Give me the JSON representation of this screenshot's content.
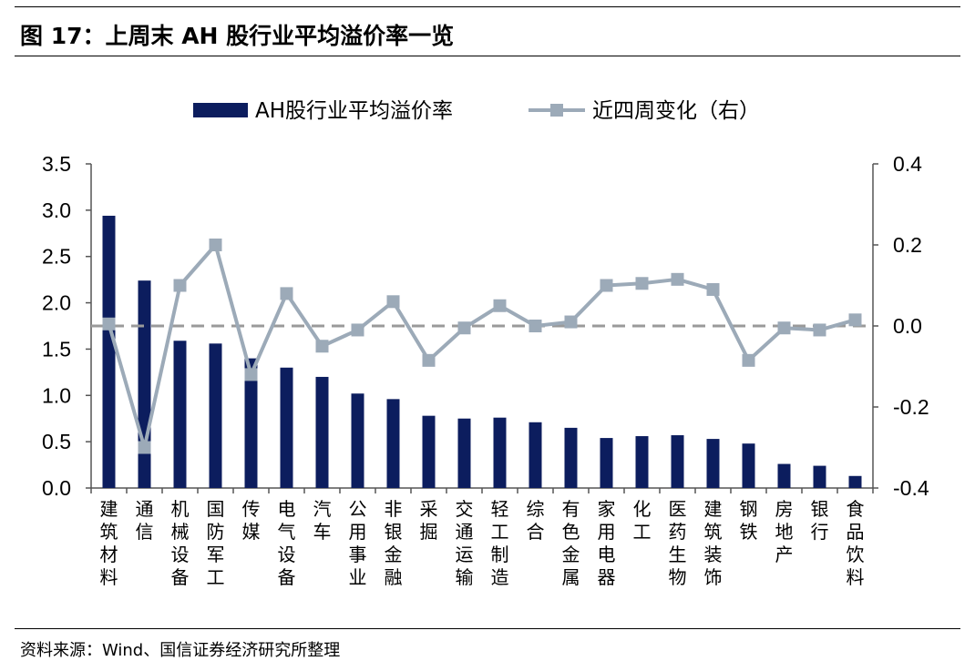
{
  "header": {
    "title": "图 17：上周末 AH 股行业平均溢价率一览"
  },
  "footer": {
    "source": "资料来源：Wind、国信证券经济研究所整理"
  },
  "chart_data": {
    "type": "bar+line",
    "categories": [
      "建筑材料",
      "通信",
      "机械设备",
      "国防军工",
      "传媒",
      "电气设备",
      "汽车",
      "公用事业",
      "非银金融",
      "采掘",
      "交通运输",
      "轻工制造",
      "综合",
      "有色金属",
      "家用电器",
      "化工",
      "医药生物",
      "建筑装饰",
      "钢铁",
      "房地产",
      "银行",
      "食品饮料"
    ],
    "series": [
      {
        "name": "AH股行业平均溢价率",
        "type": "bar",
        "axis": "left",
        "color": "#0c1d5e",
        "values": [
          2.94,
          2.24,
          1.59,
          1.56,
          1.4,
          1.3,
          1.2,
          1.02,
          0.96,
          0.78,
          0.75,
          0.76,
          0.71,
          0.65,
          0.54,
          0.56,
          0.57,
          0.53,
          0.48,
          0.26,
          0.24,
          0.13
        ]
      },
      {
        "name": "近四周变化（右）",
        "type": "line",
        "axis": "right",
        "color": "#9caab8",
        "values": [
          0.005,
          -0.3,
          0.1,
          0.2,
          -0.12,
          0.08,
          -0.05,
          -0.01,
          0.06,
          -0.085,
          -0.005,
          0.05,
          0.0,
          0.01,
          0.1,
          0.105,
          0.115,
          0.09,
          -0.085,
          -0.005,
          -0.01,
          0.015
        ]
      }
    ],
    "y_left": {
      "min": 0.0,
      "max": 3.5,
      "ticks": [
        "0.0",
        "0.5",
        "1.0",
        "1.5",
        "2.0",
        "2.5",
        "3.0",
        "3.5"
      ]
    },
    "y_right": {
      "min": -0.4,
      "max": 0.4,
      "ticks": [
        "-0.4",
        "-0.2",
        "0.0",
        "0.2",
        "0.4"
      ]
    },
    "reference_line": {
      "axis": "right",
      "value": 0.0,
      "style": "dashed"
    },
    "legend": "top-center",
    "grid": false
  }
}
